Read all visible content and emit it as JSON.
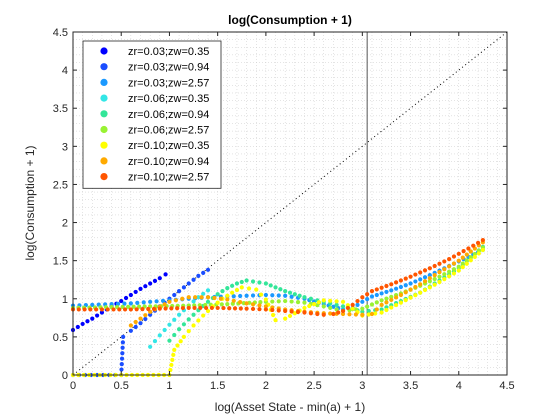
{
  "chart_data": {
    "type": "scatter",
    "title": "log(Consumption + 1)",
    "xlabel": "log(Asset State - min(a) + 1)",
    "ylabel": "log(Consumption + 1)",
    "xlim": [
      0,
      4.5
    ],
    "ylim": [
      0,
      4.5
    ],
    "xticks": [
      "0",
      "0.5",
      "1",
      "1.5",
      "2",
      "2.5",
      "3",
      "3.5",
      "4",
      "4.5"
    ],
    "yticks": [
      "0",
      "0.5",
      "1",
      "1.5",
      "2",
      "2.5",
      "3",
      "3.5",
      "4",
      "4.5"
    ],
    "grid": "minor-dotted",
    "legend_position": "top-left",
    "reference_line": {
      "style": "dotted",
      "from": [
        0,
        0
      ],
      "to": [
        4.5,
        4.5
      ]
    },
    "vertical_line_x": 3.05,
    "series": [
      {
        "name": "zr=0.03;zw=0.35",
        "color": "#0000ff",
        "points": [
          [
            0.0,
            0.59
          ],
          [
            0.1,
            0.67
          ],
          [
            0.2,
            0.74
          ],
          [
            0.3,
            0.82
          ],
          [
            0.4,
            0.9
          ],
          [
            0.5,
            0.97
          ],
          [
            0.6,
            1.05
          ],
          [
            0.7,
            1.13
          ],
          [
            0.8,
            1.2
          ],
          [
            0.9,
            1.27
          ],
          [
            0.96,
            1.32
          ]
        ]
      },
      {
        "name": "zr=0.03;zw=0.94",
        "color": "#1a4dff",
        "points": [
          [
            0.0,
            0.0
          ],
          [
            0.25,
            0.0
          ],
          [
            0.5,
            0.0
          ],
          [
            0.52,
            0.5
          ],
          [
            0.6,
            0.58
          ],
          [
            0.7,
            0.68
          ],
          [
            0.8,
            0.79
          ],
          [
            0.9,
            0.9
          ],
          [
            1.0,
            1.0
          ],
          [
            1.1,
            1.1
          ],
          [
            1.2,
            1.2
          ],
          [
            1.3,
            1.3
          ],
          [
            1.4,
            1.38
          ]
        ]
      },
      {
        "name": "zr=0.03;zw=2.57",
        "color": "#1a99ff",
        "points": [
          [
            0.0,
            0.91
          ],
          [
            0.2,
            0.92
          ],
          [
            0.4,
            0.93
          ],
          [
            0.6,
            0.94
          ],
          [
            0.8,
            0.96
          ],
          [
            1.0,
            0.98
          ],
          [
            1.2,
            1.0
          ],
          [
            1.4,
            1.02
          ],
          [
            1.6,
            1.03
          ],
          [
            1.8,
            1.04
          ],
          [
            2.0,
            1.05
          ],
          [
            2.2,
            1.04
          ],
          [
            2.4,
            1.0
          ],
          [
            2.6,
            0.93
          ],
          [
            2.8,
            0.86
          ],
          [
            2.9,
            0.88
          ],
          [
            3.0,
            0.96
          ],
          [
            3.1,
            1.03
          ],
          [
            3.3,
            1.11
          ],
          [
            3.5,
            1.2
          ],
          [
            3.7,
            1.31
          ],
          [
            3.9,
            1.43
          ],
          [
            4.1,
            1.55
          ],
          [
            4.25,
            1.64
          ]
        ]
      },
      {
        "name": "zr=0.06;zw=0.35",
        "color": "#33e6e6",
        "points": [
          [
            0.8,
            0.37
          ],
          [
            0.9,
            0.52
          ],
          [
            1.0,
            0.66
          ],
          [
            1.1,
            0.79
          ],
          [
            1.2,
            0.91
          ],
          [
            1.3,
            1.02
          ],
          [
            1.4,
            1.11
          ]
        ]
      },
      {
        "name": "zr=0.06;zw=0.94",
        "color": "#33e699",
        "points": [
          [
            1.0,
            0.45
          ],
          [
            1.1,
            0.6
          ],
          [
            1.2,
            0.73
          ],
          [
            1.3,
            0.85
          ],
          [
            1.4,
            0.96
          ],
          [
            1.5,
            1.06
          ],
          [
            1.6,
            1.14
          ],
          [
            1.7,
            1.2
          ],
          [
            1.8,
            1.24
          ],
          [
            2.0,
            1.2
          ],
          [
            2.2,
            1.1
          ],
          [
            2.4,
            1.02
          ],
          [
            2.6,
            0.96
          ],
          [
            2.8,
            0.9
          ],
          [
            3.0,
            0.83
          ],
          [
            3.2,
            0.86
          ],
          [
            3.4,
            0.97
          ],
          [
            3.6,
            1.08
          ],
          [
            3.8,
            1.24
          ],
          [
            4.0,
            1.4
          ],
          [
            4.25,
            1.68
          ]
        ]
      },
      {
        "name": "zr=0.06;zw=2.57",
        "color": "#99f233",
        "points": [
          [
            0.0,
            0.88
          ],
          [
            0.4,
            0.89
          ],
          [
            0.8,
            0.9
          ],
          [
            1.2,
            0.91
          ],
          [
            1.6,
            0.93
          ],
          [
            2.0,
            0.96
          ],
          [
            2.2,
            0.97
          ],
          [
            2.4,
            0.95
          ],
          [
            2.6,
            0.9
          ],
          [
            2.8,
            0.84
          ],
          [
            3.0,
            0.87
          ],
          [
            3.2,
            0.98
          ],
          [
            3.4,
            1.07
          ],
          [
            3.6,
            1.17
          ],
          [
            3.8,
            1.29
          ],
          [
            4.0,
            1.42
          ],
          [
            4.25,
            1.67
          ]
        ]
      },
      {
        "name": "zr=0.10;zw=0.35",
        "color": "#ffff00",
        "points": [
          [
            0.0,
            0.0
          ],
          [
            0.5,
            0.0
          ],
          [
            1.0,
            0.0
          ],
          [
            1.05,
            0.33
          ],
          [
            1.15,
            0.5
          ],
          [
            1.25,
            0.65
          ],
          [
            1.35,
            0.78
          ],
          [
            1.45,
            0.9
          ],
          [
            1.55,
            1.0
          ],
          [
            1.65,
            1.08
          ],
          [
            1.75,
            1.15
          ],
          [
            1.9,
            1.12
          ],
          [
            2.0,
            0.99
          ],
          [
            2.1,
            0.72
          ],
          [
            2.2,
            0.74
          ],
          [
            2.4,
            0.88
          ],
          [
            2.6,
            0.98
          ],
          [
            2.8,
            0.96
          ],
          [
            3.0,
            0.78
          ],
          [
            3.2,
            0.82
          ],
          [
            3.4,
            0.95
          ],
          [
            3.6,
            1.08
          ],
          [
            3.8,
            1.22
          ],
          [
            4.0,
            1.37
          ],
          [
            4.25,
            1.64
          ]
        ]
      },
      {
        "name": "zr=0.10;zw=0.94",
        "color": "#ffaa00",
        "points": [
          [
            0.6,
            0.65
          ],
          [
            0.8,
            0.83
          ],
          [
            1.0,
            0.96
          ],
          [
            1.2,
            1.02
          ],
          [
            1.4,
            1.02
          ],
          [
            1.6,
            0.99
          ],
          [
            1.8,
            0.94
          ],
          [
            2.0,
            0.9
          ],
          [
            2.2,
            0.86
          ],
          [
            2.4,
            0.83
          ],
          [
            2.6,
            0.81
          ],
          [
            2.8,
            0.8
          ],
          [
            3.0,
            0.79
          ],
          [
            3.1,
            0.8
          ],
          [
            3.2,
            0.92
          ],
          [
            3.4,
            1.05
          ],
          [
            3.6,
            1.19
          ],
          [
            3.8,
            1.35
          ],
          [
            4.0,
            1.5
          ],
          [
            4.25,
            1.74
          ]
        ]
      },
      {
        "name": "zr=0.10;zw=2.57",
        "color": "#ff5500",
        "points": [
          [
            0.0,
            0.86
          ],
          [
            0.3,
            0.86
          ],
          [
            0.6,
            0.86
          ],
          [
            0.9,
            0.87
          ],
          [
            1.2,
            0.88
          ],
          [
            1.5,
            0.88
          ],
          [
            1.8,
            0.87
          ],
          [
            2.0,
            0.86
          ],
          [
            2.2,
            0.84
          ],
          [
            2.4,
            0.82
          ],
          [
            2.6,
            0.79
          ],
          [
            2.7,
            0.8
          ],
          [
            2.8,
            0.84
          ],
          [
            2.9,
            0.92
          ],
          [
            3.0,
            1.02
          ],
          [
            3.1,
            1.1
          ],
          [
            3.3,
            1.19
          ],
          [
            3.5,
            1.29
          ],
          [
            3.7,
            1.4
          ],
          [
            3.9,
            1.52
          ],
          [
            4.1,
            1.66
          ],
          [
            4.25,
            1.77
          ]
        ]
      }
    ]
  }
}
